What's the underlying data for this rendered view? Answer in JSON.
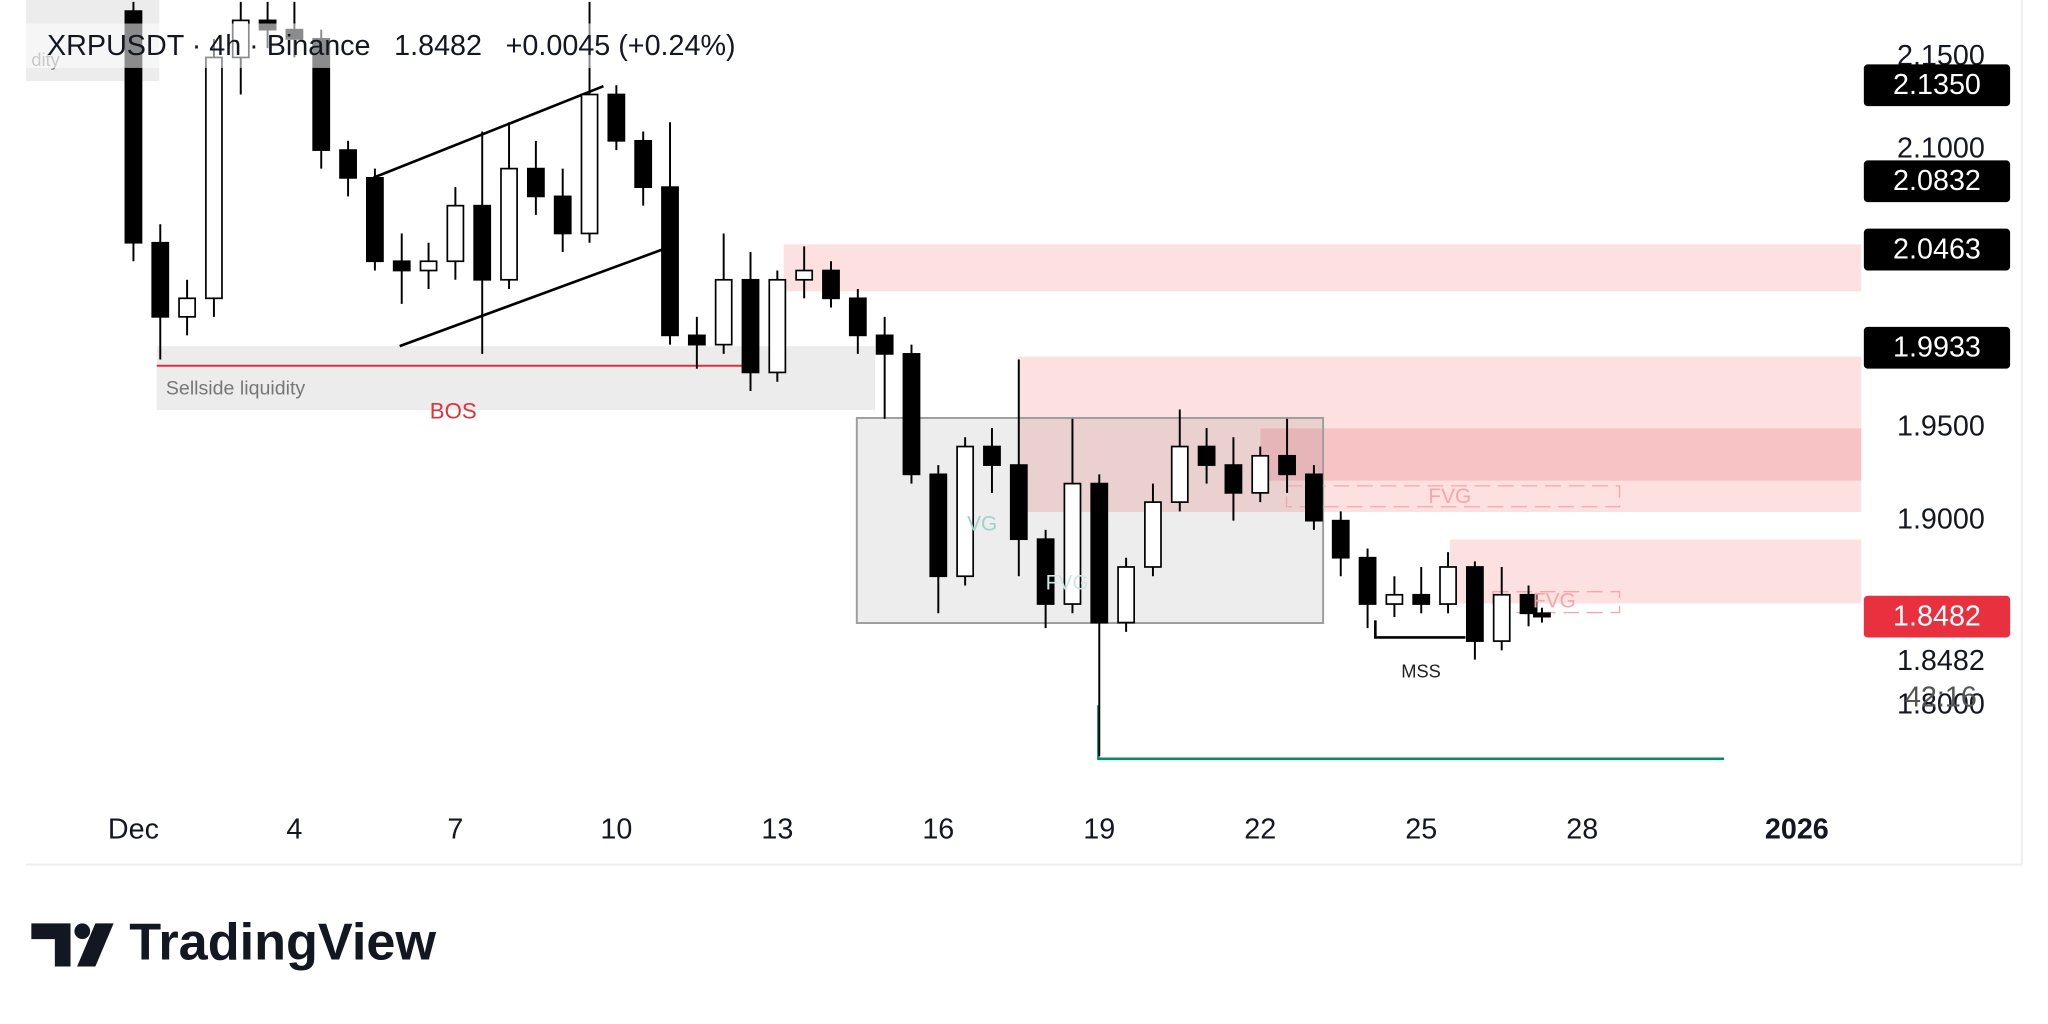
{
  "chart_data": {
    "type": "candlestick",
    "symbol": "XRPUSDT · 4h · Binance",
    "price": "1.8482",
    "change": "+0.0045 (+0.24%)",
    "x": [
      1,
      1.5,
      2,
      2.5,
      3,
      3.5,
      4,
      4.5,
      5,
      5.5,
      6,
      6.5,
      7,
      7.5,
      8,
      8.5,
      9,
      9.5,
      10,
      10.5,
      11,
      11.5,
      12,
      12.5,
      13,
      13.5,
      14,
      14.5,
      15,
      15.5,
      16,
      16.5,
      17,
      17.5,
      18,
      18.5,
      19,
      19.5,
      20,
      20.5,
      21,
      21.5,
      22,
      22.5,
      23,
      23.5,
      24,
      24.5,
      25,
      25.5,
      26,
      26.5,
      27,
      27.25
    ],
    "open": [
      2.175,
      2.05,
      2.01,
      2.02,
      2.15,
      2.17,
      2.165,
      2.16,
      2.1,
      2.085,
      2.04,
      2.035,
      2.04,
      2.07,
      2.03,
      2.09,
      2.075,
      2.055,
      2.13,
      2.105,
      2.08,
      2.0,
      1.995,
      2.03,
      1.98,
      2.03,
      2.035,
      2.02,
      2.0,
      1.99,
      1.925,
      1.87,
      1.94,
      1.93,
      1.89,
      1.855,
      1.92,
      1.845,
      1.875,
      1.91,
      1.94,
      1.93,
      1.915,
      1.935,
      1.925,
      1.9,
      1.88,
      1.855,
      1.86,
      1.855,
      1.875,
      1.835,
      1.86,
      1.85
    ],
    "high": [
      2.18,
      2.06,
      2.03,
      2.16,
      2.18,
      2.18,
      2.18,
      2.165,
      2.105,
      2.09,
      2.055,
      2.05,
      2.08,
      2.11,
      2.115,
      2.105,
      2.09,
      2.18,
      2.135,
      2.11,
      2.115,
      2.01,
      2.055,
      2.045,
      2.035,
      2.048,
      2.04,
      2.025,
      2.01,
      1.995,
      1.93,
      1.945,
      1.95,
      1.987,
      1.895,
      1.955,
      1.925,
      1.88,
      1.92,
      1.96,
      1.95,
      1.945,
      1.94,
      1.955,
      1.93,
      1.905,
      1.885,
      1.87,
      1.875,
      1.883,
      1.878,
      1.875,
      1.865,
      1.853
    ],
    "low": [
      2.04,
      1.987,
      2.0,
      2.01,
      2.13,
      2.155,
      2.15,
      2.09,
      2.075,
      2.035,
      2.017,
      2.025,
      2.03,
      1.99,
      2.025,
      2.065,
      2.045,
      2.05,
      2.1,
      2.07,
      1.995,
      1.982,
      1.99,
      1.97,
      1.975,
      2.02,
      2.015,
      1.99,
      1.955,
      1.92,
      1.85,
      1.865,
      1.915,
      1.87,
      1.842,
      1.85,
      1.773,
      1.84,
      1.87,
      1.905,
      1.92,
      1.9,
      1.91,
      1.915,
      1.895,
      1.87,
      1.842,
      1.848,
      1.85,
      1.85,
      1.825,
      1.83,
      1.843,
      1.845
    ],
    "close": [
      2.05,
      2.01,
      2.02,
      2.15,
      2.17,
      2.165,
      2.16,
      2.1,
      2.085,
      2.04,
      2.035,
      2.04,
      2.07,
      2.03,
      2.09,
      2.075,
      2.055,
      2.13,
      2.105,
      2.08,
      2.0,
      1.995,
      2.03,
      1.98,
      2.03,
      2.035,
      2.02,
      2.0,
      1.99,
      1.925,
      1.87,
      1.94,
      1.93,
      1.89,
      1.855,
      1.92,
      1.845,
      1.875,
      1.91,
      1.94,
      1.93,
      1.915,
      1.935,
      1.925,
      1.9,
      1.88,
      1.855,
      1.86,
      1.855,
      1.875,
      1.835,
      1.86,
      1.85,
      1.8482
    ],
    "up_color": "#ffffff",
    "down_color": "#000000",
    "xlim": [
      -1,
      33.2
    ],
    "ylim": [
      1.751,
      2.181
    ],
    "xticks": [
      {
        "value": 1,
        "label": "Dec"
      },
      4,
      7,
      10,
      13,
      16,
      19,
      22,
      25,
      28,
      {
        "value": 32,
        "label": "2026"
      }
    ],
    "yticks": [
      {
        "value": 2.15,
        "label": "2.1500"
      },
      {
        "value": 2.1,
        "label": "2.1000"
      },
      {
        "value": 1.95,
        "label": "1.9500"
      },
      {
        "value": 1.9,
        "label": "1.9000"
      },
      {
        "value": 1.8,
        "label": "1.8000"
      }
    ],
    "price_labels": [
      {
        "value": 2.135,
        "label": "2.1350"
      },
      {
        "value": 2.0832,
        "label": "2.0832"
      },
      {
        "value": 2.0463,
        "label": "2.0463"
      },
      {
        "value": 1.9933,
        "label": "1.9933"
      }
    ],
    "last_price": {
      "value": 1.8482,
      "label": "1.8482"
    },
    "last_price_text": "1.8482",
    "countdown": "42:16",
    "annotations": [
      "dity",
      "Sellside liquidity",
      "BOS",
      "FVG",
      "FVG",
      "VG",
      "FVG",
      "MSS"
    ]
  },
  "footer": {
    "brand": "TradingView"
  }
}
